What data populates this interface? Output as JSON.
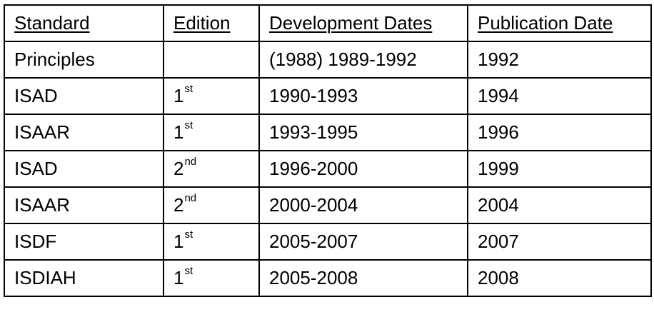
{
  "table": {
    "headers": [
      "Standard",
      "Edition",
      "Development Dates",
      "Publication Date"
    ],
    "rows": [
      {
        "standard": "Principles",
        "edition_num": "",
        "edition_sup": "",
        "dev_dates": "(1988) 1989-1992",
        "pub_date": "1992"
      },
      {
        "standard": "ISAD",
        "edition_num": "1",
        "edition_sup": "st",
        "dev_dates": "1990-1993",
        "pub_date": "1994"
      },
      {
        "standard": "ISAAR",
        "edition_num": "1",
        "edition_sup": "st",
        "dev_dates": "1993-1995",
        "pub_date": "1996"
      },
      {
        "standard": "ISAD",
        "edition_num": "2",
        "edition_sup": "nd",
        "dev_dates": "1996-2000",
        "pub_date": "1999"
      },
      {
        "standard": "ISAAR",
        "edition_num": "2",
        "edition_sup": "nd",
        "dev_dates": "2000-2004",
        "pub_date": "2004"
      },
      {
        "standard": "ISDF",
        "edition_num": "1",
        "edition_sup": "st",
        "dev_dates": "2005-2007",
        "pub_date": "2007"
      },
      {
        "standard": "ISDIAH",
        "edition_num": "1",
        "edition_sup": "st",
        "dev_dates": "2005-2008",
        "pub_date": "2008"
      }
    ]
  }
}
